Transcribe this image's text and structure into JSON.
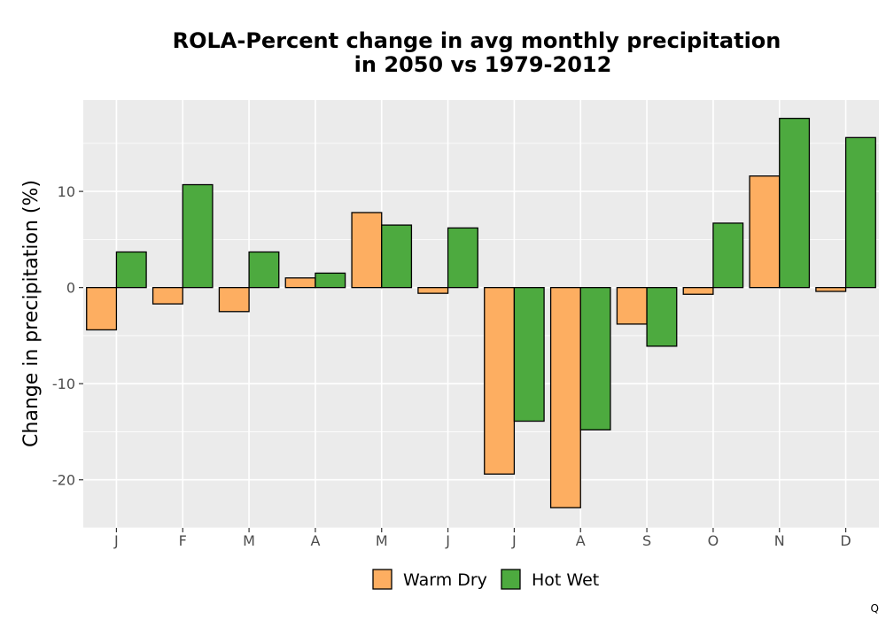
{
  "chart_data": {
    "type": "bar",
    "title_lines": [
      "ROLA-Percent change in avg monthly precipitation",
      "in 2050 vs 1979-2012"
    ],
    "xlabel": "",
    "ylabel": "Change in precipitation (%)",
    "categories": [
      "J",
      "F",
      "M",
      "A",
      "M",
      "J",
      "J",
      "A",
      "S",
      "O",
      "N",
      "D"
    ],
    "series": [
      {
        "name": "Warm Dry",
        "color": "#FDAE61",
        "values": [
          -4.4,
          -1.7,
          -2.5,
          1.0,
          7.8,
          -0.6,
          -19.4,
          -22.9,
          -3.8,
          -0.7,
          11.6,
          -0.4
        ]
      },
      {
        "name": "Hot Wet",
        "color": "#4DAA3F",
        "values": [
          3.7,
          10.7,
          3.7,
          1.5,
          6.5,
          6.2,
          -13.9,
          -14.8,
          -6.1,
          6.7,
          17.6,
          15.6
        ]
      }
    ],
    "ylim": [
      -25,
      19.5
    ],
    "yticks": [
      -20,
      -10,
      0,
      10
    ],
    "ytick_labels": [
      "-20",
      "-10",
      "0",
      "10"
    ],
    "grid": true,
    "legend_position": "bottom"
  },
  "corner_mark": "Q"
}
